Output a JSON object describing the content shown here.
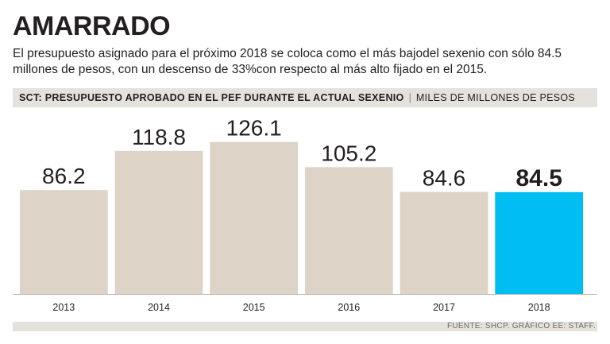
{
  "header": {
    "title": "AMARRADO",
    "subtitle": "El presupuesto asignado para el próximo 2018 se coloca como el más bajodel sexenio con sólo 84.5 millones de pesos, con un descenso de 33%con respecto al más alto fijado en el 2015."
  },
  "band": {
    "title": "SCT: PRESUPUESTO APROBADO EN EL PEF DURANTE EL ACTUAL SEXENIO",
    "separator": "|",
    "units": "MILES DE MILLONES DE PESOS"
  },
  "source": "FUENTE: SHCP. GRÁFICO EE: STAFF.",
  "colors": {
    "bar": "#ddd3c7",
    "highlight": "#00bdf2",
    "text": "#231f20",
    "band": "#e5e1dc"
  },
  "chart_data": {
    "type": "bar",
    "title": "SCT: PRESUPUESTO APROBADO EN EL PEF DURANTE EL ACTUAL SEXENIO",
    "ylabel": "MILES DE MILLONES DE PESOS",
    "xlabel": "",
    "categories": [
      "2013",
      "2014",
      "2015",
      "2016",
      "2017",
      "2018"
    ],
    "values": [
      86.2,
      118.8,
      126.1,
      105.2,
      84.6,
      84.5
    ],
    "value_labels": [
      "86.2",
      "118.8",
      "126.1",
      "105.2",
      "84.6",
      "84.5"
    ],
    "highlight_index": 5,
    "ylim": [
      0,
      145
    ],
    "grid": false,
    "legend": "none"
  }
}
